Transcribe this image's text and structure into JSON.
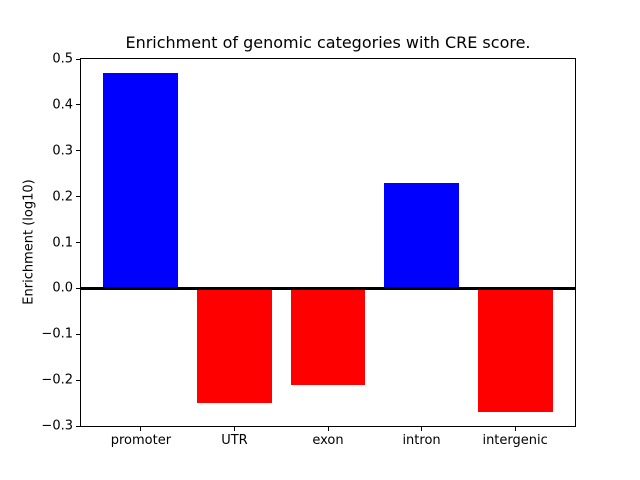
{
  "chart_data": {
    "type": "bar",
    "title": "Enrichment of genomic categories with CRE score.",
    "xlabel": "",
    "ylabel": "Enrichment (log10)",
    "categories": [
      "promoter",
      "UTR",
      "exon",
      "intron",
      "intergenic"
    ],
    "values": [
      0.47,
      -0.25,
      -0.21,
      0.23,
      -0.27
    ],
    "colors": [
      "#0000ff",
      "#ff0000",
      "#ff0000",
      "#0000ff",
      "#ff0000"
    ],
    "color_legend": {
      "positive_enrichment": "#0000ff",
      "negative_enrichment": "#ff0000"
    },
    "ylim": [
      -0.3,
      0.5
    ],
    "xlim": [
      -0.64,
      4.64
    ],
    "bar_width": 0.8,
    "ytick_values": [
      -0.3,
      -0.2,
      -0.1,
      0.0,
      0.1,
      0.2,
      0.3,
      0.4,
      0.5
    ],
    "ytick_labels": [
      "−0.3",
      "−0.2",
      "−0.1",
      "0.0",
      "0.1",
      "0.2",
      "0.3",
      "0.4",
      "0.5"
    ],
    "grid": false,
    "legend_position": "none",
    "zero_line": true,
    "background_color": "#ffffff",
    "spine_color": "#000000"
  }
}
